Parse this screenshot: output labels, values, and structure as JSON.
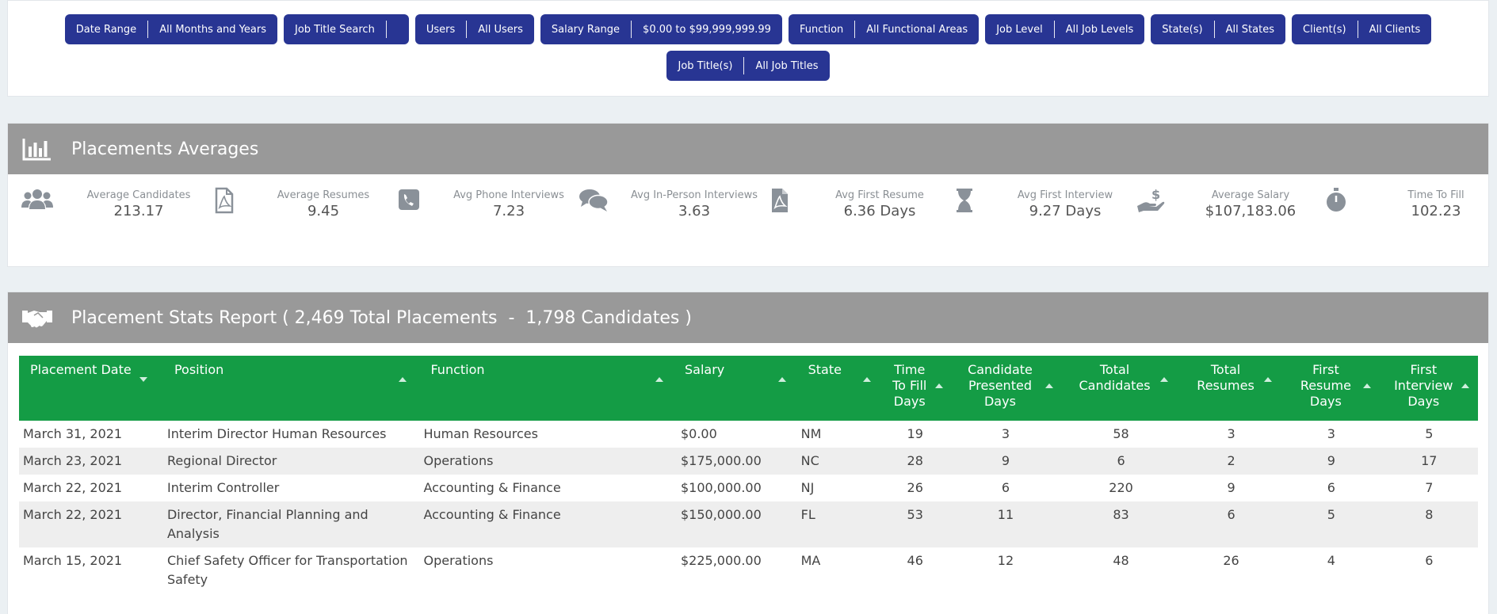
{
  "filters": [
    {
      "label": "Date Range",
      "value": "All Months and Years"
    },
    {
      "label": "Job Title Search",
      "value": ""
    },
    {
      "label": "Users",
      "value": "All Users"
    },
    {
      "label": "Salary Range",
      "value": "$0.00 to $99,999,999.99"
    },
    {
      "label": "Function",
      "value": "All Functional Areas"
    },
    {
      "label": "Job Level",
      "value": "All Job Levels"
    },
    {
      "label": "State(s)",
      "value": "All States"
    },
    {
      "label": "Client(s)",
      "value": "All Clients"
    },
    {
      "label": "Job Title(s)",
      "value": "All Job Titles"
    }
  ],
  "averages": {
    "title": "Placements Averages",
    "icon": "bar-chart-icon",
    "stats": [
      {
        "icon": "users-icon",
        "label": "Average Candidates",
        "value": "213.17"
      },
      {
        "icon": "pdf-file-icon",
        "label": "Average Resumes",
        "value": "9.45"
      },
      {
        "icon": "phone-icon",
        "label": "Avg Phone Interviews",
        "value": "7.23"
      },
      {
        "icon": "comments-icon",
        "label": "Avg In-Person Interviews",
        "value": "3.63"
      },
      {
        "icon": "pdf-file-solid-icon",
        "label": "Avg First Resume",
        "value": "6.36 Days"
      },
      {
        "icon": "hourglass-icon",
        "label": "Avg First Interview",
        "value": "9.27 Days"
      },
      {
        "icon": "hand-dollar-icon",
        "label": "Average Salary",
        "value": "$107,183.06"
      },
      {
        "icon": "stopwatch-icon",
        "label": "Time To Fill",
        "value": "102.23"
      }
    ]
  },
  "report": {
    "title": "Placement Stats Report ( 2,469 Total Placements  -  1,798 Candidates )",
    "icon": "handshake-icon",
    "columns": [
      "Placement Date",
      "Position",
      "Function",
      "Salary",
      "State",
      "Time To Fill Days",
      "Candidate Presented Days",
      "Total Candidates",
      "Total Resumes",
      "First Resume Days",
      "First Interview Days"
    ],
    "rows": [
      [
        "March 31, 2021",
        "Interim Director Human Resources",
        "Human Resources",
        "$0.00",
        "NM",
        "19",
        "3",
        "58",
        "3",
        "3",
        "5"
      ],
      [
        "March 23, 2021",
        "Regional Director",
        "Operations",
        "$175,000.00",
        "NC",
        "28",
        "9",
        "6",
        "2",
        "9",
        "17"
      ],
      [
        "March 22, 2021",
        "Interim Controller",
        "Accounting & Finance",
        "$100,000.00",
        "NJ",
        "26",
        "6",
        "220",
        "9",
        "6",
        "7"
      ],
      [
        "March 22, 2021",
        "Director, Financial Planning and Analysis",
        "Accounting & Finance",
        "$150,000.00",
        "FL",
        "53",
        "11",
        "83",
        "6",
        "5",
        "8"
      ],
      [
        "March 15, 2021",
        "Chief Safety Officer for Transportation Safety",
        "Operations",
        "$225,000.00",
        "MA",
        "46",
        "12",
        "48",
        "26",
        "4",
        "6"
      ]
    ]
  },
  "colors": {
    "filter_pill": "#283593",
    "section_header": "#999999",
    "table_header": "#149c45",
    "icon_gray": "#8a9199"
  }
}
